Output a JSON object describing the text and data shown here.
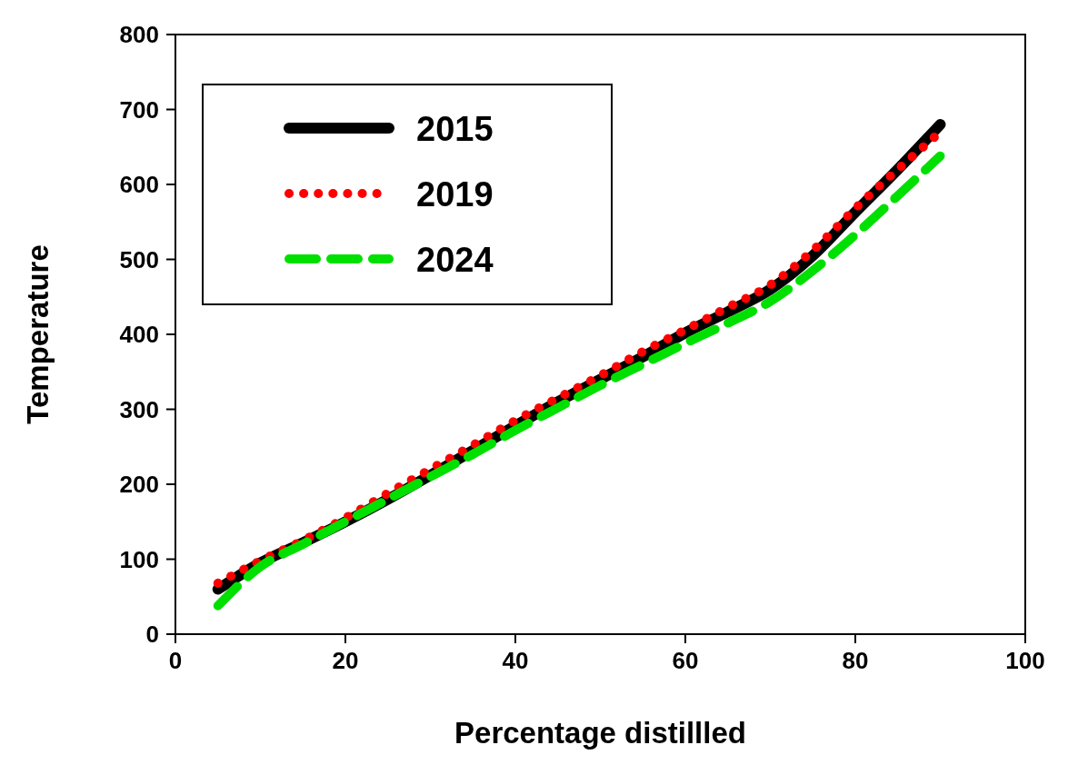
{
  "chart_data": {
    "type": "line",
    "xlabel": "Percentage distillled",
    "ylabel": "Temperature",
    "x": [
      5,
      10,
      15,
      20,
      25,
      30,
      35,
      40,
      45,
      50,
      55,
      60,
      65,
      70,
      75,
      80,
      85,
      90
    ],
    "xlim": [
      0,
      100
    ],
    "xticks": [
      0,
      20,
      40,
      60,
      80,
      100
    ],
    "ylim": [
      0,
      800
    ],
    "yticks": [
      0,
      100,
      200,
      300,
      400,
      500,
      600,
      700,
      800
    ],
    "grid": false,
    "legend": "top left",
    "series": [
      {
        "name": "2015",
        "color": "#000000",
        "line_style": "solid",
        "values": [
          60,
          95,
          122,
          150,
          180,
          212,
          245,
          278,
          310,
          340,
          370,
          402,
          430,
          460,
          505,
          563,
          620,
          680
        ]
      },
      {
        "name": "2019",
        "color": "#ff0000",
        "line_style": "dotted",
        "values": [
          68,
          98,
          125,
          155,
          188,
          220,
          252,
          285,
          315,
          345,
          377,
          406,
          436,
          466,
          512,
          568,
          620,
          670
        ]
      },
      {
        "name": "2024",
        "color": "#00e000",
        "line_style": "dashed",
        "values": [
          38,
          90,
          120,
          150,
          180,
          210,
          240,
          272,
          302,
          332,
          360,
          388,
          415,
          444,
          485,
          533,
          585,
          638
        ]
      }
    ]
  }
}
